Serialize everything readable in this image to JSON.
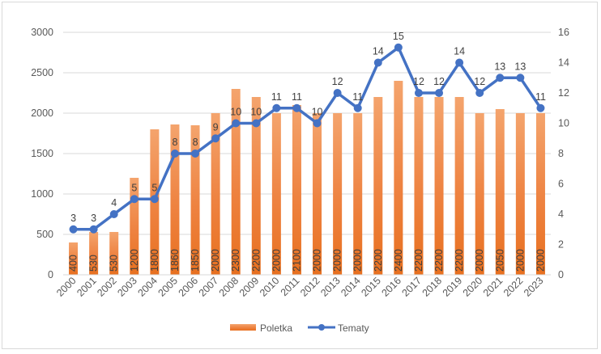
{
  "chart_data": {
    "type": "bar",
    "combo": "bar+line",
    "categories": [
      "2000",
      "2001",
      "2002",
      "2003",
      "2004",
      "2005",
      "2006",
      "2007",
      "2008",
      "2009",
      "2010",
      "2011",
      "2012",
      "2013",
      "2014",
      "2015",
      "2016",
      "2017",
      "2018",
      "2019",
      "2020",
      "2021",
      "2022",
      "2023"
    ],
    "series": [
      {
        "name": "Poletka",
        "type": "bar",
        "axis": "left",
        "color": "#ed7d31",
        "values": [
          400,
          530,
          530,
          1200,
          1800,
          1860,
          1850,
          2000,
          2300,
          2200,
          2000,
          2100,
          2000,
          2000,
          2000,
          2200,
          2400,
          2200,
          2200,
          2200,
          2000,
          2050,
          2000,
          2000
        ]
      },
      {
        "name": "Tematy",
        "type": "line",
        "axis": "right",
        "color": "#4472c4",
        "values": [
          3,
          3,
          4,
          5,
          5,
          8,
          8,
          9,
          10,
          10,
          11,
          11,
          10,
          12,
          11,
          14,
          15,
          12,
          12,
          14,
          12,
          13,
          13,
          11
        ]
      }
    ],
    "y_left": {
      "min": 0,
      "max": 3000,
      "step": 500,
      "ticks": [
        "0",
        "500",
        "1000",
        "1500",
        "2000",
        "2500",
        "3000"
      ]
    },
    "y_right": {
      "min": 0,
      "max": 16,
      "step": 2,
      "ticks": [
        "0",
        "2",
        "4",
        "6",
        "8",
        "10",
        "12",
        "14",
        "16"
      ]
    },
    "grid": true,
    "legend": "bottom"
  }
}
